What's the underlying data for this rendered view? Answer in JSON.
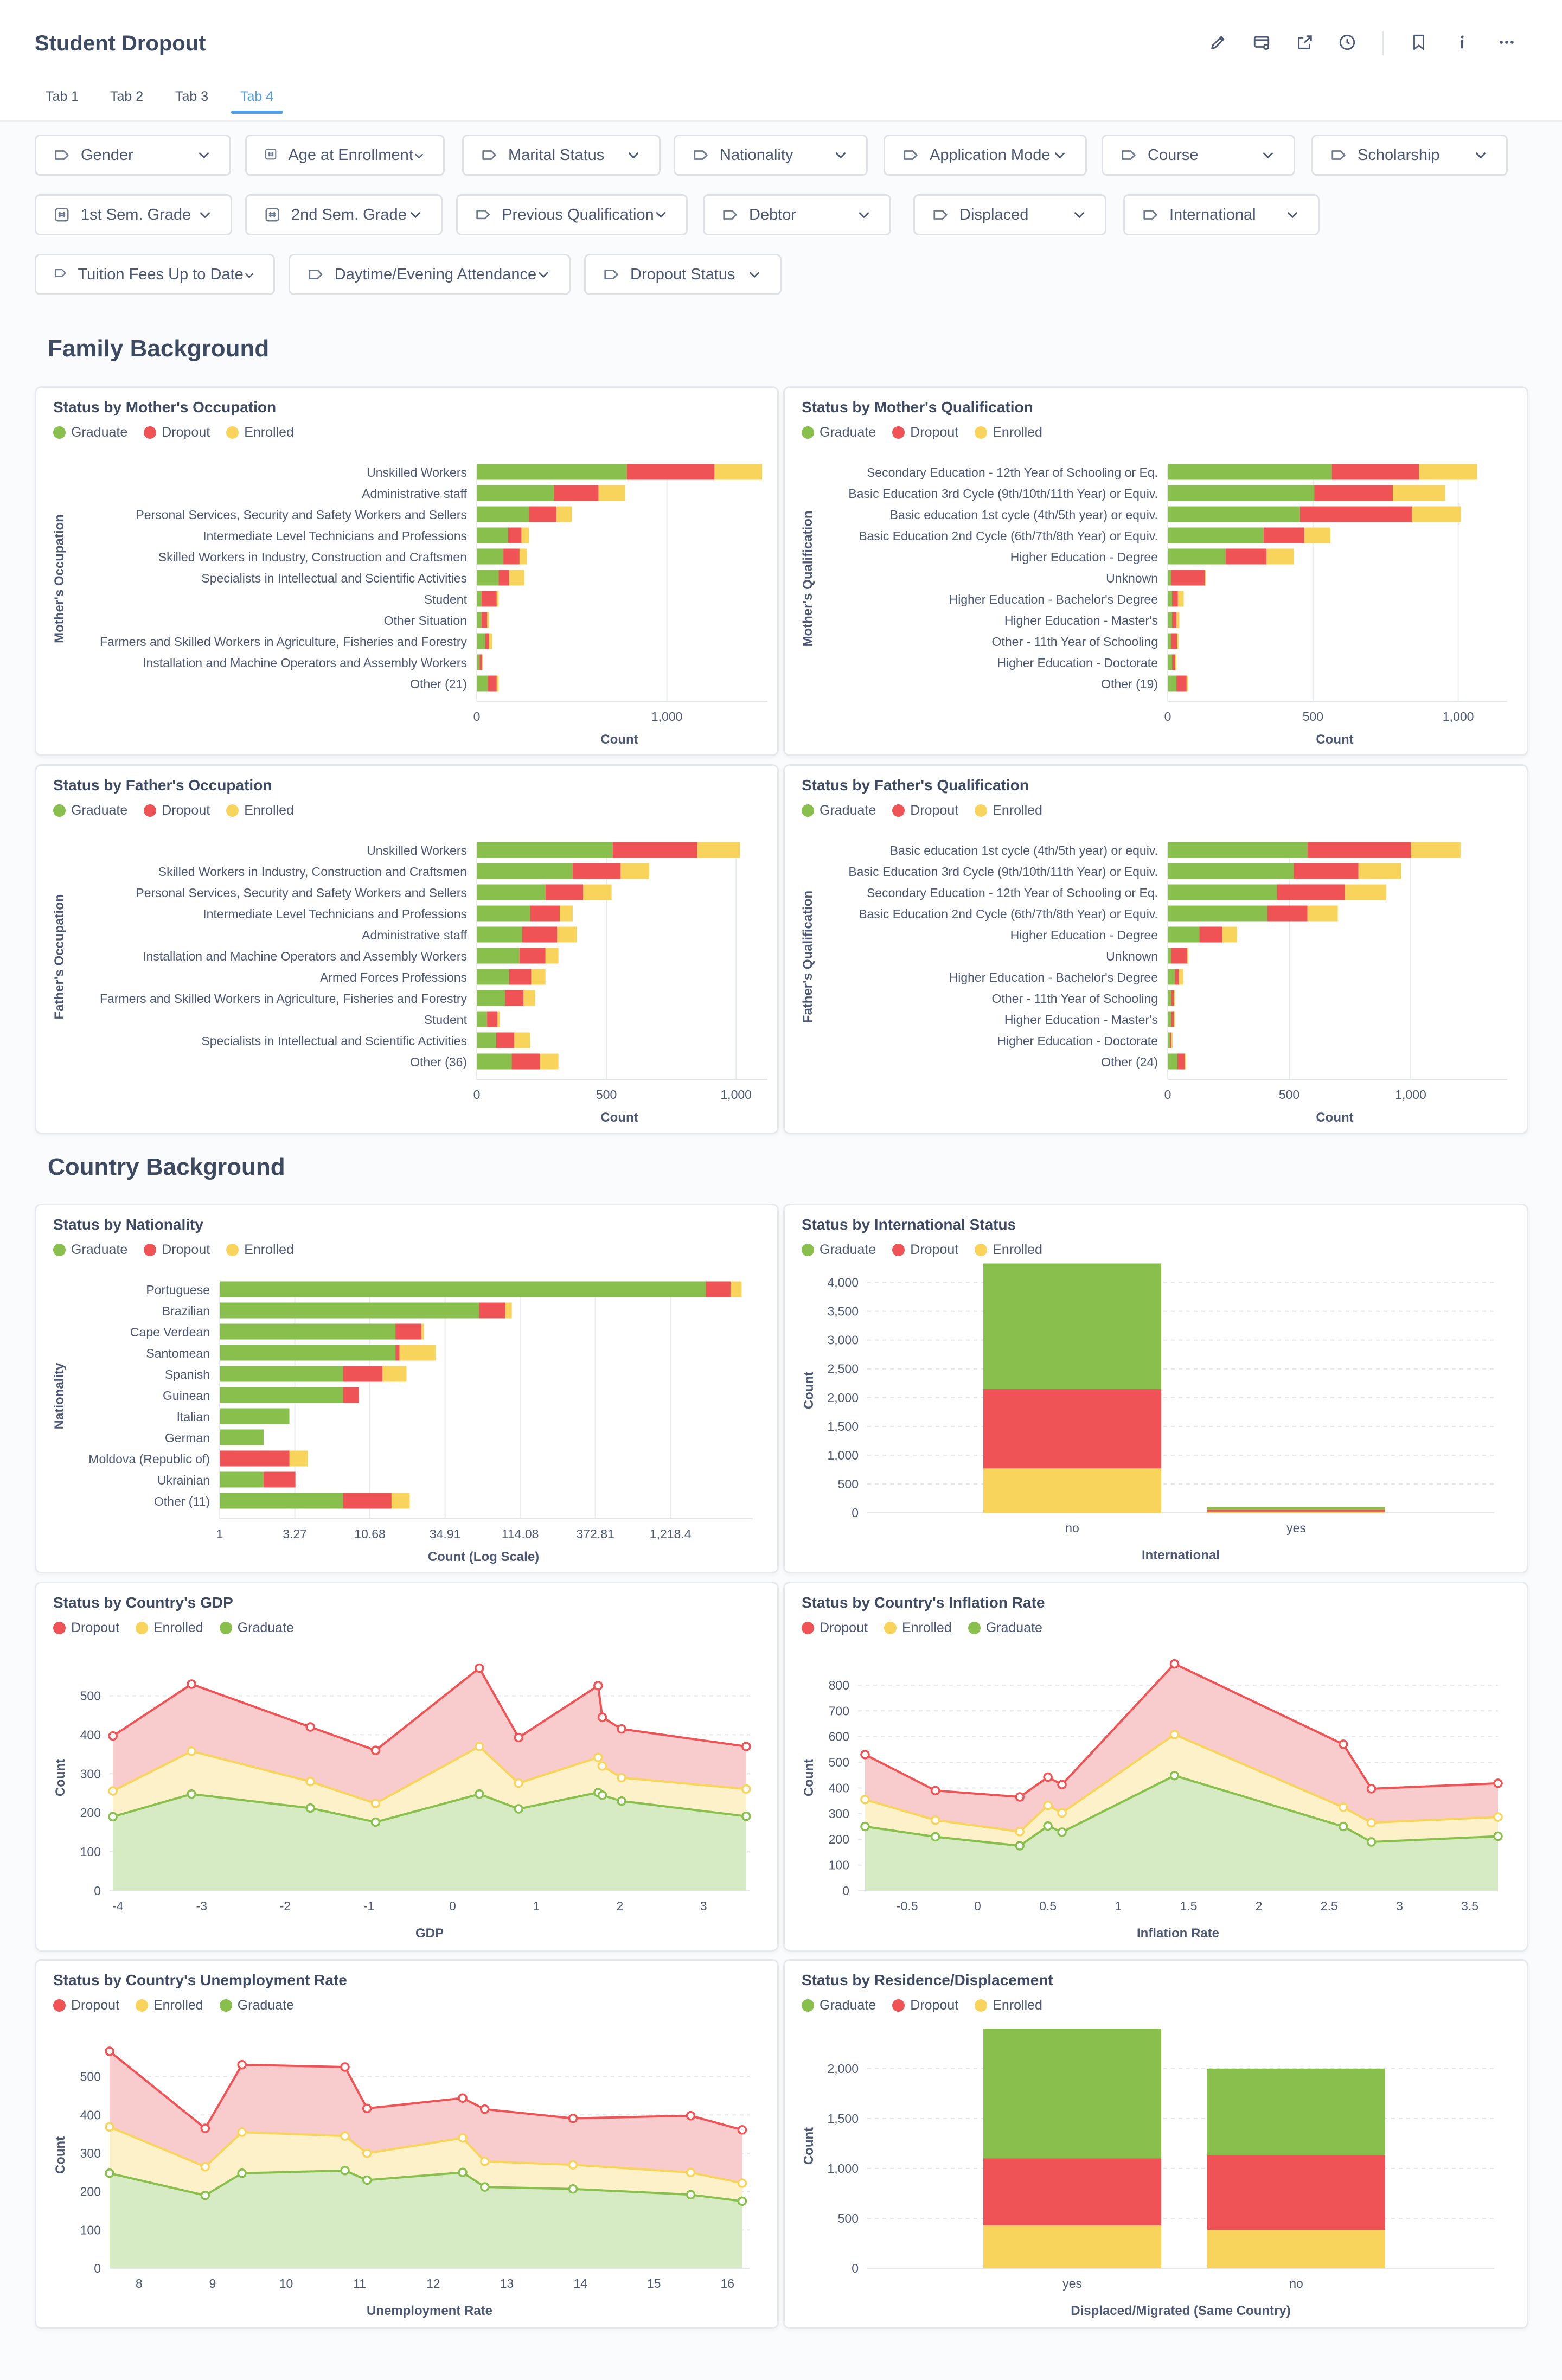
{
  "header": {
    "title": "Student Dropout",
    "tabs": [
      {
        "label": "Tab 1",
        "active": false
      },
      {
        "label": "Tab 2",
        "active": false
      },
      {
        "label": "Tab 3",
        "active": false
      },
      {
        "label": "Tab 4",
        "active": true
      }
    ],
    "icons": [
      "pencil-icon",
      "subscriptions-icon",
      "share-icon",
      "history-icon",
      "bookmark-icon",
      "info-icon",
      "more-icon"
    ]
  },
  "filters": [
    {
      "label": "Gender",
      "icon": "tag-icon"
    },
    {
      "label": "Age at Enrollment",
      "icon": "number-icon"
    },
    {
      "label": "Marital Status",
      "icon": "tag-icon"
    },
    {
      "label": "Nationality",
      "icon": "tag-icon"
    },
    {
      "label": "Application Mode",
      "icon": "tag-icon"
    },
    {
      "label": "Course",
      "icon": "tag-icon"
    },
    {
      "label": "Scholarship",
      "icon": "tag-icon"
    },
    {
      "label": "1st Sem. Grade",
      "icon": "number-icon"
    },
    {
      "label": "2nd Sem. Grade",
      "icon": "number-icon"
    },
    {
      "label": "Previous Qualification",
      "icon": "tag-icon"
    },
    {
      "label": "Debtor",
      "icon": "tag-icon"
    },
    {
      "label": "Displaced",
      "icon": "tag-icon"
    },
    {
      "label": "International",
      "icon": "tag-icon"
    },
    {
      "label": "Tuition Fees Up to Date",
      "icon": "tag-icon"
    },
    {
      "label": "Daytime/Evening Attendance",
      "icon": "tag-icon"
    },
    {
      "label": "Dropout Status",
      "icon": "tag-icon"
    }
  ],
  "sections": {
    "family": "Family Background",
    "country": "Country Background"
  },
  "colors": {
    "graduate": "#88bf4d",
    "dropout": "#ef5355",
    "enrolled": "#f9d45c"
  },
  "chart_data": [
    {
      "id": "mother-occupation",
      "title": "Status by Mother's Occupation",
      "type": "bar",
      "orientation": "horizontal",
      "stacked": true,
      "legend": [
        "Graduate",
        "Dropout",
        "Enrolled"
      ],
      "ylabel": "Mother's Occupation",
      "xlabel": "Count",
      "xlim": [
        0,
        1500
      ],
      "xticks": [
        {
          "v": 0,
          "label": "0"
        },
        {
          "v": 1000,
          "label": "1,000"
        }
      ],
      "categories": [
        "Unskilled Workers",
        "Administrative staff",
        "Personal Services, Security and Safety Workers and Sellers",
        "Intermediate Level Technicians and Professions",
        "Skilled Workers in Industry, Construction and Craftsmen",
        "Specialists in Intellectual and Scientific Activities",
        "Student",
        "Other Situation",
        "Farmers and Skilled Workers in Agriculture, Fisheries and Forestry",
        "Installation and Machine Operators and Assembly Workers",
        "Other (21)"
      ],
      "series": [
        {
          "name": "Graduate",
          "values": [
            790,
            405,
            275,
            165,
            140,
            115,
            25,
            25,
            45,
            15,
            60
          ]
        },
        {
          "name": "Dropout",
          "values": [
            460,
            235,
            145,
            70,
            85,
            55,
            80,
            30,
            20,
            12,
            45
          ]
        },
        {
          "name": "Enrolled",
          "values": [
            250,
            140,
            80,
            40,
            40,
            80,
            10,
            10,
            15,
            5,
            10
          ]
        }
      ]
    },
    {
      "id": "mother-qualification",
      "title": "Status by Mother's Qualification",
      "type": "bar",
      "orientation": "horizontal",
      "stacked": true,
      "legend": [
        "Graduate",
        "Dropout",
        "Enrolled"
      ],
      "ylabel": "Mother's Qualification",
      "xlabel": "Count",
      "xlim": [
        0,
        1150
      ],
      "xticks": [
        {
          "v": 0,
          "label": "0"
        },
        {
          "v": 500,
          "label": "500"
        },
        {
          "v": 1000,
          "label": "1,000"
        }
      ],
      "categories": [
        "Secondary Education - 12th Year of Schooling or Eq.",
        "Basic Education 3rd Cycle (9th/10th/11th Year) or Equiv.",
        "Basic education 1st cycle (4th/5th year) or equiv.",
        "Basic Education 2nd Cycle (6th/7th/8th Year) or Equiv.",
        "Higher Education - Degree",
        "Unknown",
        "Higher Education - Bachelor's Degree",
        "Higher Education - Master's",
        "Other - 11th Year of Schooling",
        "Higher Education - Doctorate",
        "Other (19)"
      ],
      "series": [
        {
          "name": "Graduate",
          "values": [
            565,
            505,
            455,
            330,
            200,
            12,
            15,
            15,
            12,
            15,
            30
          ]
        },
        {
          "name": "Dropout",
          "values": [
            300,
            270,
            385,
            140,
            140,
            115,
            20,
            15,
            20,
            10,
            35
          ]
        },
        {
          "name": "Enrolled",
          "values": [
            200,
            180,
            170,
            90,
            95,
            5,
            20,
            10,
            5,
            5,
            5
          ]
        }
      ]
    },
    {
      "id": "father-occupation",
      "title": "Status by Father's Occupation",
      "type": "bar",
      "orientation": "horizontal",
      "stacked": true,
      "legend": [
        "Graduate",
        "Dropout",
        "Enrolled"
      ],
      "ylabel": "Father's Occupation",
      "xlabel": "Count",
      "xlim": [
        0,
        1100
      ],
      "xticks": [
        {
          "v": 0,
          "label": "0"
        },
        {
          "v": 500,
          "label": "500"
        },
        {
          "v": 1000,
          "label": "1,000"
        }
      ],
      "categories": [
        "Unskilled Workers",
        "Skilled Workers in Industry, Construction and Craftsmen",
        "Personal Services, Security and Safety Workers and Sellers",
        "Intermediate Level Technicians and Professions",
        "Administrative staff",
        "Installation and Machine Operators and Assembly Workers",
        "Armed Forces Professions",
        "Farmers and Skilled Workers in Agriculture, Fisheries and Forestry",
        "Student",
        "Specialists in Intellectual and Scientific Activities",
        "Other (36)"
      ],
      "series": [
        {
          "name": "Graduate",
          "values": [
            525,
            370,
            265,
            205,
            175,
            165,
            125,
            110,
            40,
            75,
            135
          ]
        },
        {
          "name": "Dropout",
          "values": [
            325,
            185,
            145,
            115,
            135,
            100,
            85,
            70,
            40,
            70,
            110
          ]
        },
        {
          "name": "Enrolled",
          "values": [
            165,
            110,
            110,
            50,
            75,
            50,
            55,
            45,
            10,
            60,
            70
          ]
        }
      ]
    },
    {
      "id": "father-qualification",
      "title": "Status by Father's Qualification",
      "type": "bar",
      "orientation": "horizontal",
      "stacked": true,
      "legend": [
        "Graduate",
        "Dropout",
        "Enrolled"
      ],
      "ylabel": "Father's Qualification",
      "xlabel": "Count",
      "xlim": [
        0,
        1375
      ],
      "xticks": [
        {
          "v": 0,
          "label": "0"
        },
        {
          "v": 500,
          "label": "500"
        },
        {
          "v": 1000,
          "label": "1,000"
        }
      ],
      "categories": [
        "Basic education 1st cycle (4th/5th year) or equiv.",
        "Basic Education 3rd Cycle (9th/10th/11th Year) or Equiv.",
        "Secondary Education - 12th Year of Schooling or Eq.",
        "Basic Education 2nd Cycle (6th/7th/8th Year) or Equiv.",
        "Higher Education - Degree",
        "Unknown",
        "Higher Education - Bachelor's Degree",
        "Other - 11th Year of Schooling",
        "Higher Education - Master's",
        "Higher Education - Doctorate",
        "Other (24)"
      ],
      "series": [
        {
          "name": "Graduate",
          "values": [
            575,
            520,
            450,
            410,
            130,
            15,
            30,
            15,
            15,
            10,
            40
          ]
        },
        {
          "name": "Dropout",
          "values": [
            425,
            265,
            280,
            165,
            95,
            65,
            15,
            10,
            10,
            5,
            30
          ]
        },
        {
          "name": "Enrolled",
          "values": [
            205,
            175,
            170,
            125,
            60,
            5,
            20,
            5,
            5,
            5,
            5
          ]
        }
      ]
    },
    {
      "id": "nationality",
      "title": "Status by Nationality",
      "type": "bar",
      "orientation": "horizontal",
      "stacked": true,
      "legend": [
        "Graduate",
        "Dropout",
        "Enrolled"
      ],
      "ylabel": "Nationality",
      "xlabel": "Count (Log Scale)",
      "xscale": "log",
      "xlim": [
        1,
        4096
      ],
      "xticks": [
        {
          "v": 1,
          "label": "1"
        },
        {
          "v": 3.27,
          "label": "3.27"
        },
        {
          "v": 10.68,
          "label": "10.68"
        },
        {
          "v": 34.91,
          "label": "34.91"
        },
        {
          "v": 114.08,
          "label": "114.08"
        },
        {
          "v": 372.81,
          "label": "372.81"
        },
        {
          "v": 1218.4,
          "label": "1,218.4"
        }
      ],
      "categories": [
        "Portuguese",
        "Brazilian",
        "Cape Verdean",
        "Santomean",
        "Spanish",
        "Guinean",
        "Italian",
        "German",
        "Moldova (Republic of)",
        "Ukrainian",
        "Other (11)"
      ],
      "series": [
        {
          "name": "Graduate",
          "values": [
            2140,
            60,
            16,
            16,
            7,
            7,
            3,
            2,
            1,
            2,
            7
          ]
        },
        {
          "name": "Dropout",
          "values": [
            1000,
            30,
            8,
            1,
            6,
            2,
            0,
            0,
            2,
            1.3,
            8
          ]
        },
        {
          "name": "Enrolled",
          "values": [
            600,
            10,
            1,
            13,
            6,
            0,
            0,
            0,
            1,
            0,
            5
          ]
        }
      ]
    },
    {
      "id": "international",
      "title": "Status by International Status",
      "type": "bar",
      "orientation": "vertical",
      "stacked": true,
      "legend": [
        "Graduate",
        "Dropout",
        "Enrolled"
      ],
      "xlabel": "International",
      "ylabel": "Count",
      "ylim": [
        0,
        4250
      ],
      "yticks": [
        0,
        500,
        1000,
        1500,
        2000,
        2500,
        3000,
        3500,
        4000
      ],
      "categories": [
        "no",
        "yes"
      ],
      "series": [
        {
          "name": "Graduate",
          "values": [
            2180,
            50
          ]
        },
        {
          "name": "Dropout",
          "values": [
            1380,
            30
          ]
        },
        {
          "name": "Enrolled",
          "values": [
            770,
            20
          ]
        }
      ]
    },
    {
      "id": "gdp",
      "title": "Status by Country's GDP",
      "type": "area",
      "stacked": true,
      "legend": [
        "Dropout",
        "Enrolled",
        "Graduate"
      ],
      "xlabel": "GDP",
      "ylabel": "Count",
      "xlim": [
        -4.1,
        3.55
      ],
      "ylim": [
        0,
        580
      ],
      "xticks": [
        -4,
        -3,
        -2,
        -1,
        0,
        1,
        2,
        3
      ],
      "yticks": [
        0,
        100,
        200,
        300,
        400,
        500
      ],
      "x": [
        -4.06,
        -3.12,
        -1.7,
        -0.92,
        0.32,
        0.79,
        1.74,
        1.79,
        2.02,
        3.51
      ],
      "series": [
        {
          "name": "Graduate",
          "values": [
            190,
            248,
            212,
            176,
            248,
            210,
            252,
            245,
            230,
            191
          ]
        },
        {
          "name": "Enrolled",
          "values": [
            66,
            110,
            68,
            48,
            122,
            66,
            90,
            75,
            60,
            70
          ]
        },
        {
          "name": "Dropout",
          "values": [
            141,
            172,
            140,
            136,
            201,
            117,
            184,
            125,
            125,
            109
          ]
        }
      ]
    },
    {
      "id": "inflation",
      "title": "Status by Country's Inflation Rate",
      "type": "area",
      "stacked": true,
      "legend": [
        "Dropout",
        "Enrolled",
        "Graduate"
      ],
      "xlabel": "Inflation Rate",
      "ylabel": "Count",
      "xlim": [
        -0.85,
        3.7
      ],
      "ylim": [
        0,
        880
      ],
      "xticks": [
        -0.5,
        0,
        0.5,
        1,
        1.5,
        2,
        2.5,
        3,
        3.5
      ],
      "xticklabels": [
        "-0.5",
        "0",
        "0.5",
        "1",
        "1.5",
        "2",
        "2.5",
        "3",
        "3.5"
      ],
      "yticks": [
        0,
        100,
        200,
        300,
        400,
        500,
        600,
        700,
        800
      ],
      "x": [
        -0.8,
        -0.3,
        0.3,
        0.5,
        0.6,
        1.4,
        2.6,
        2.8,
        3.7
      ],
      "series": [
        {
          "name": "Graduate",
          "values": [
            250,
            210,
            175,
            252,
            228,
            448,
            250,
            190,
            212
          ]
        },
        {
          "name": "Enrolled",
          "values": [
            105,
            65,
            55,
            80,
            75,
            160,
            75,
            75,
            75
          ]
        },
        {
          "name": "Dropout",
          "values": [
            175,
            115,
            135,
            110,
            110,
            275,
            245,
            132,
            131
          ]
        }
      ]
    },
    {
      "id": "unemployment",
      "title": "Status by Country's Unemployment Rate",
      "type": "area",
      "stacked": true,
      "legend": [
        "Dropout",
        "Enrolled",
        "Graduate"
      ],
      "xlabel": "Unemployment Rate",
      "ylabel": "Count",
      "xlim": [
        7.6,
        16.3
      ],
      "ylim": [
        0,
        590
      ],
      "xticks": [
        8,
        9,
        10,
        11,
        12,
        13,
        14,
        15,
        16
      ],
      "yticks": [
        0,
        100,
        200,
        300,
        400,
        500
      ],
      "x": [
        7.6,
        8.9,
        9.4,
        10.8,
        11.1,
        12.4,
        12.7,
        13.9,
        15.5,
        16.2
      ],
      "series": [
        {
          "name": "Graduate",
          "values": [
            248,
            190,
            248,
            255,
            230,
            250,
            212,
            207,
            192,
            175
          ]
        },
        {
          "name": "Enrolled",
          "values": [
            121,
            75,
            107,
            90,
            70,
            90,
            67,
            63,
            58,
            47
          ]
        },
        {
          "name": "Dropout",
          "values": [
            197,
            100,
            176,
            180,
            117,
            104,
            136,
            121,
            148,
            139
          ]
        }
      ]
    },
    {
      "id": "displacement",
      "title": "Status by Residence/Displacement",
      "type": "bar",
      "orientation": "vertical",
      "stacked": true,
      "legend": [
        "Graduate",
        "Dropout",
        "Enrolled"
      ],
      "xlabel": "Displaced/Migrated (Same Country)",
      "ylabel": "Count",
      "ylim": [
        0,
        2450
      ],
      "yticks": [
        0,
        500,
        1000,
        1500,
        2000
      ],
      "yticklabels": [
        "0",
        "500",
        "1,000",
        "1,500",
        "2,000"
      ],
      "categories": [
        "yes",
        "no"
      ],
      "series": [
        {
          "name": "Graduate",
          "values": [
            1300,
            870
          ]
        },
        {
          "name": "Dropout",
          "values": [
            670,
            745
          ]
        },
        {
          "name": "Enrolled",
          "values": [
            430,
            385
          ]
        }
      ]
    }
  ]
}
